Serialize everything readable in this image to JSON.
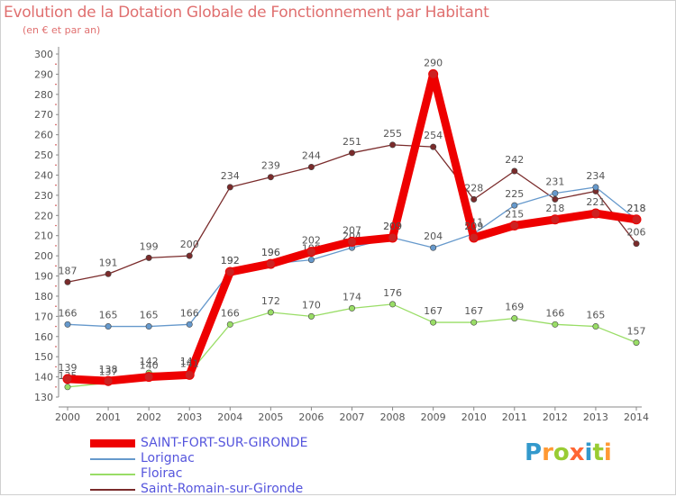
{
  "header": {
    "title": "Evolution de la Dotation Globale de Fonctionnement par Habitant",
    "subtitle": "(en € et par an)"
  },
  "brand": {
    "letters": [
      "P",
      "r",
      "o",
      "x",
      "i",
      "t",
      "i"
    ],
    "letter_colors": [
      "#3399cc",
      "#ff9933",
      "#99cc33",
      "#ff6633",
      "#3399cc",
      "#99cc33",
      "#ff9933"
    ]
  },
  "colors": {
    "accent_text": "#e07070",
    "legend_text": "#5555dd"
  },
  "chart_data": {
    "type": "line",
    "categories": [
      "2000",
      "2001",
      "2002",
      "2003",
      "2004",
      "2005",
      "2006",
      "2007",
      "2008",
      "2009",
      "2010",
      "2011",
      "2012",
      "2013",
      "2014"
    ],
    "ylim": [
      130,
      300
    ],
    "yticks": [
      130,
      140,
      150,
      160,
      170,
      180,
      190,
      200,
      210,
      220,
      230,
      240,
      250,
      260,
      270,
      280,
      290,
      300
    ],
    "grid": false,
    "legend_position": "bottom-left",
    "series": [
      {
        "name": "Saint-Romain-sur-Gironde",
        "color": "#7a2b2b",
        "values": [
          187,
          191,
          199,
          200,
          234,
          239,
          244,
          251,
          255,
          254,
          228,
          242,
          228,
          232,
          206
        ],
        "labels": [
          "187",
          "191",
          "199",
          "200",
          "234",
          "239",
          "244",
          "251",
          "255",
          "254",
          "228",
          "242",
          "",
          "",
          "206"
        ]
      },
      {
        "name": "Lorignac",
        "color": "#6699cc",
        "values": [
          166,
          165,
          165,
          166,
          192,
          196,
          198,
          204,
          209,
          204,
          211,
          225,
          231,
          234,
          218
        ],
        "labels": [
          "166",
          "165",
          "165",
          "166",
          "192",
          "196",
          "198",
          "204",
          "209",
          "204",
          "211",
          "225",
          "231",
          "234",
          "218"
        ]
      },
      {
        "name": "Floirac",
        "color": "#99dd66",
        "values": [
          135,
          137,
          142,
          142,
          166,
          172,
          170,
          174,
          176,
          167,
          167,
          169,
          166,
          165,
          157
        ],
        "labels": [
          "135",
          "137",
          "142",
          "142",
          "166",
          "172",
          "170",
          "174",
          "176",
          "167",
          "167",
          "169",
          "166",
          "165",
          "157"
        ]
      },
      {
        "name": "SAINT-FORT-SUR-GIRONDE",
        "color": "#ee0000",
        "values": [
          139,
          138,
          140,
          141,
          192,
          196,
          202,
          207,
          209,
          290,
          209,
          215,
          218,
          221,
          218
        ],
        "labels": [
          "139",
          "138",
          "140",
          "141",
          "192",
          "196",
          "202",
          "207",
          "209",
          "290",
          "209",
          "215",
          "218",
          "221",
          "218"
        ]
      }
    ]
  },
  "legend": {
    "items": [
      {
        "label": "SAINT-FORT-SUR-GIRONDE",
        "color": "#ee0000",
        "thick": true
      },
      {
        "label": "Lorignac",
        "color": "#6699cc",
        "thick": false
      },
      {
        "label": "Floirac",
        "color": "#99dd66",
        "thick": false
      },
      {
        "label": "Saint-Romain-sur-Gironde",
        "color": "#7a2b2b",
        "thick": false
      }
    ]
  }
}
